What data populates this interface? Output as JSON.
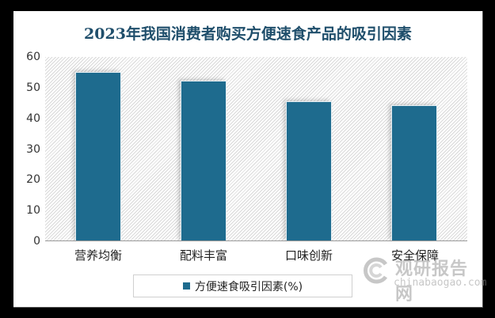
{
  "chart_data": {
    "type": "bar",
    "title": "2023年我国消费者购买方便速食产品的吸引因素",
    "categories": [
      "营养均衡",
      "配料丰富",
      "口味创新",
      "安全保障"
    ],
    "series": [
      {
        "name": "方便速食吸引因素(%)",
        "values": [
          55.0,
          52.3,
          45.7,
          44.2
        ],
        "color": "#1e6b8e"
      }
    ],
    "xlabel": "",
    "ylabel": "",
    "ylim": [
      0,
      60
    ],
    "yticks": [
      0,
      10,
      20,
      30,
      40,
      50,
      60
    ],
    "grid": false,
    "legend_position": "bottom",
    "background": "diagonal-hatch"
  },
  "title": "2023年我国消费者购买方便速食产品的吸引因素",
  "yticks": [
    "60",
    "50",
    "40",
    "30",
    "20",
    "10",
    "0"
  ],
  "categories": [
    "营养均衡",
    "配料丰富",
    "口味创新",
    "安全保障"
  ],
  "legend": {
    "label": "方便速食吸引因素(%)"
  },
  "watermark": {
    "cn": "观研报告网",
    "en": "chinabaogao.com"
  }
}
